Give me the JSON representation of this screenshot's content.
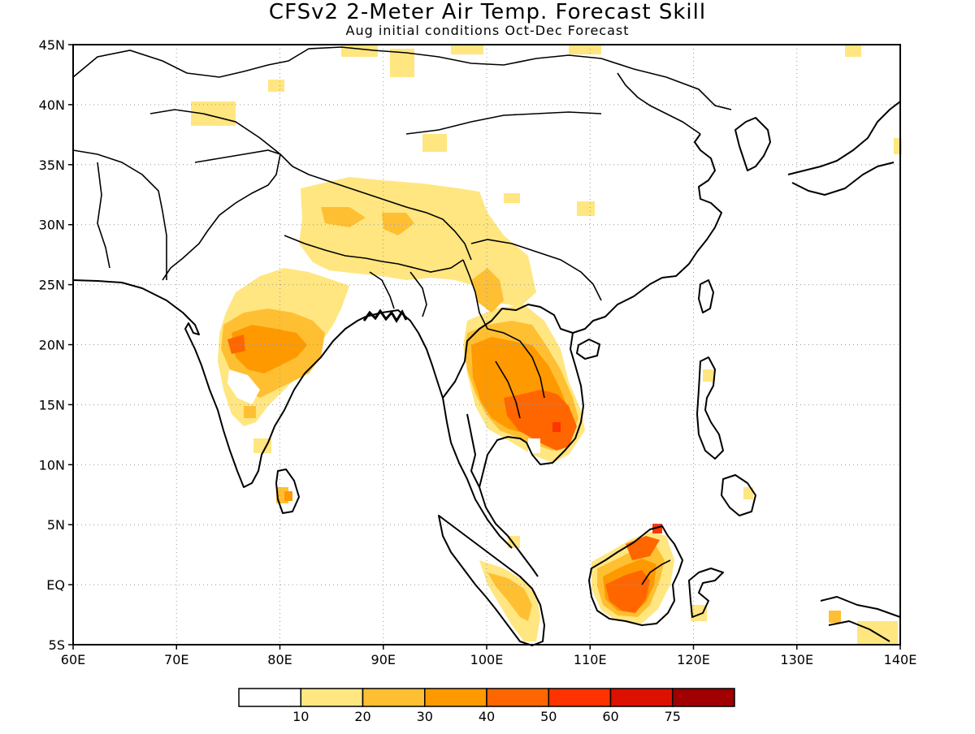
{
  "title": "CFSv2 2-Meter Air Temp. Forecast Skill",
  "subtitle": "Aug initial conditions  Oct-Dec Forecast",
  "map": {
    "lon_labels": [
      "60E",
      "70E",
      "80E",
      "90E",
      "100E",
      "110E",
      "120E",
      "130E",
      "140E"
    ],
    "lat_labels": [
      "45N",
      "40N",
      "35N",
      "30N",
      "25N",
      "20N",
      "15N",
      "10N",
      "5N",
      "EQ",
      "5S"
    ],
    "grid": true
  },
  "legend": {
    "colors": [
      "#ffffff",
      "#ffe680",
      "#ffbf33",
      "#ff9900",
      "#ff6600",
      "#ff3300",
      "#dd1100",
      "#a00000"
    ],
    "labels": [
      "10",
      "20",
      "30",
      "40",
      "50",
      "60",
      "75"
    ]
  }
}
